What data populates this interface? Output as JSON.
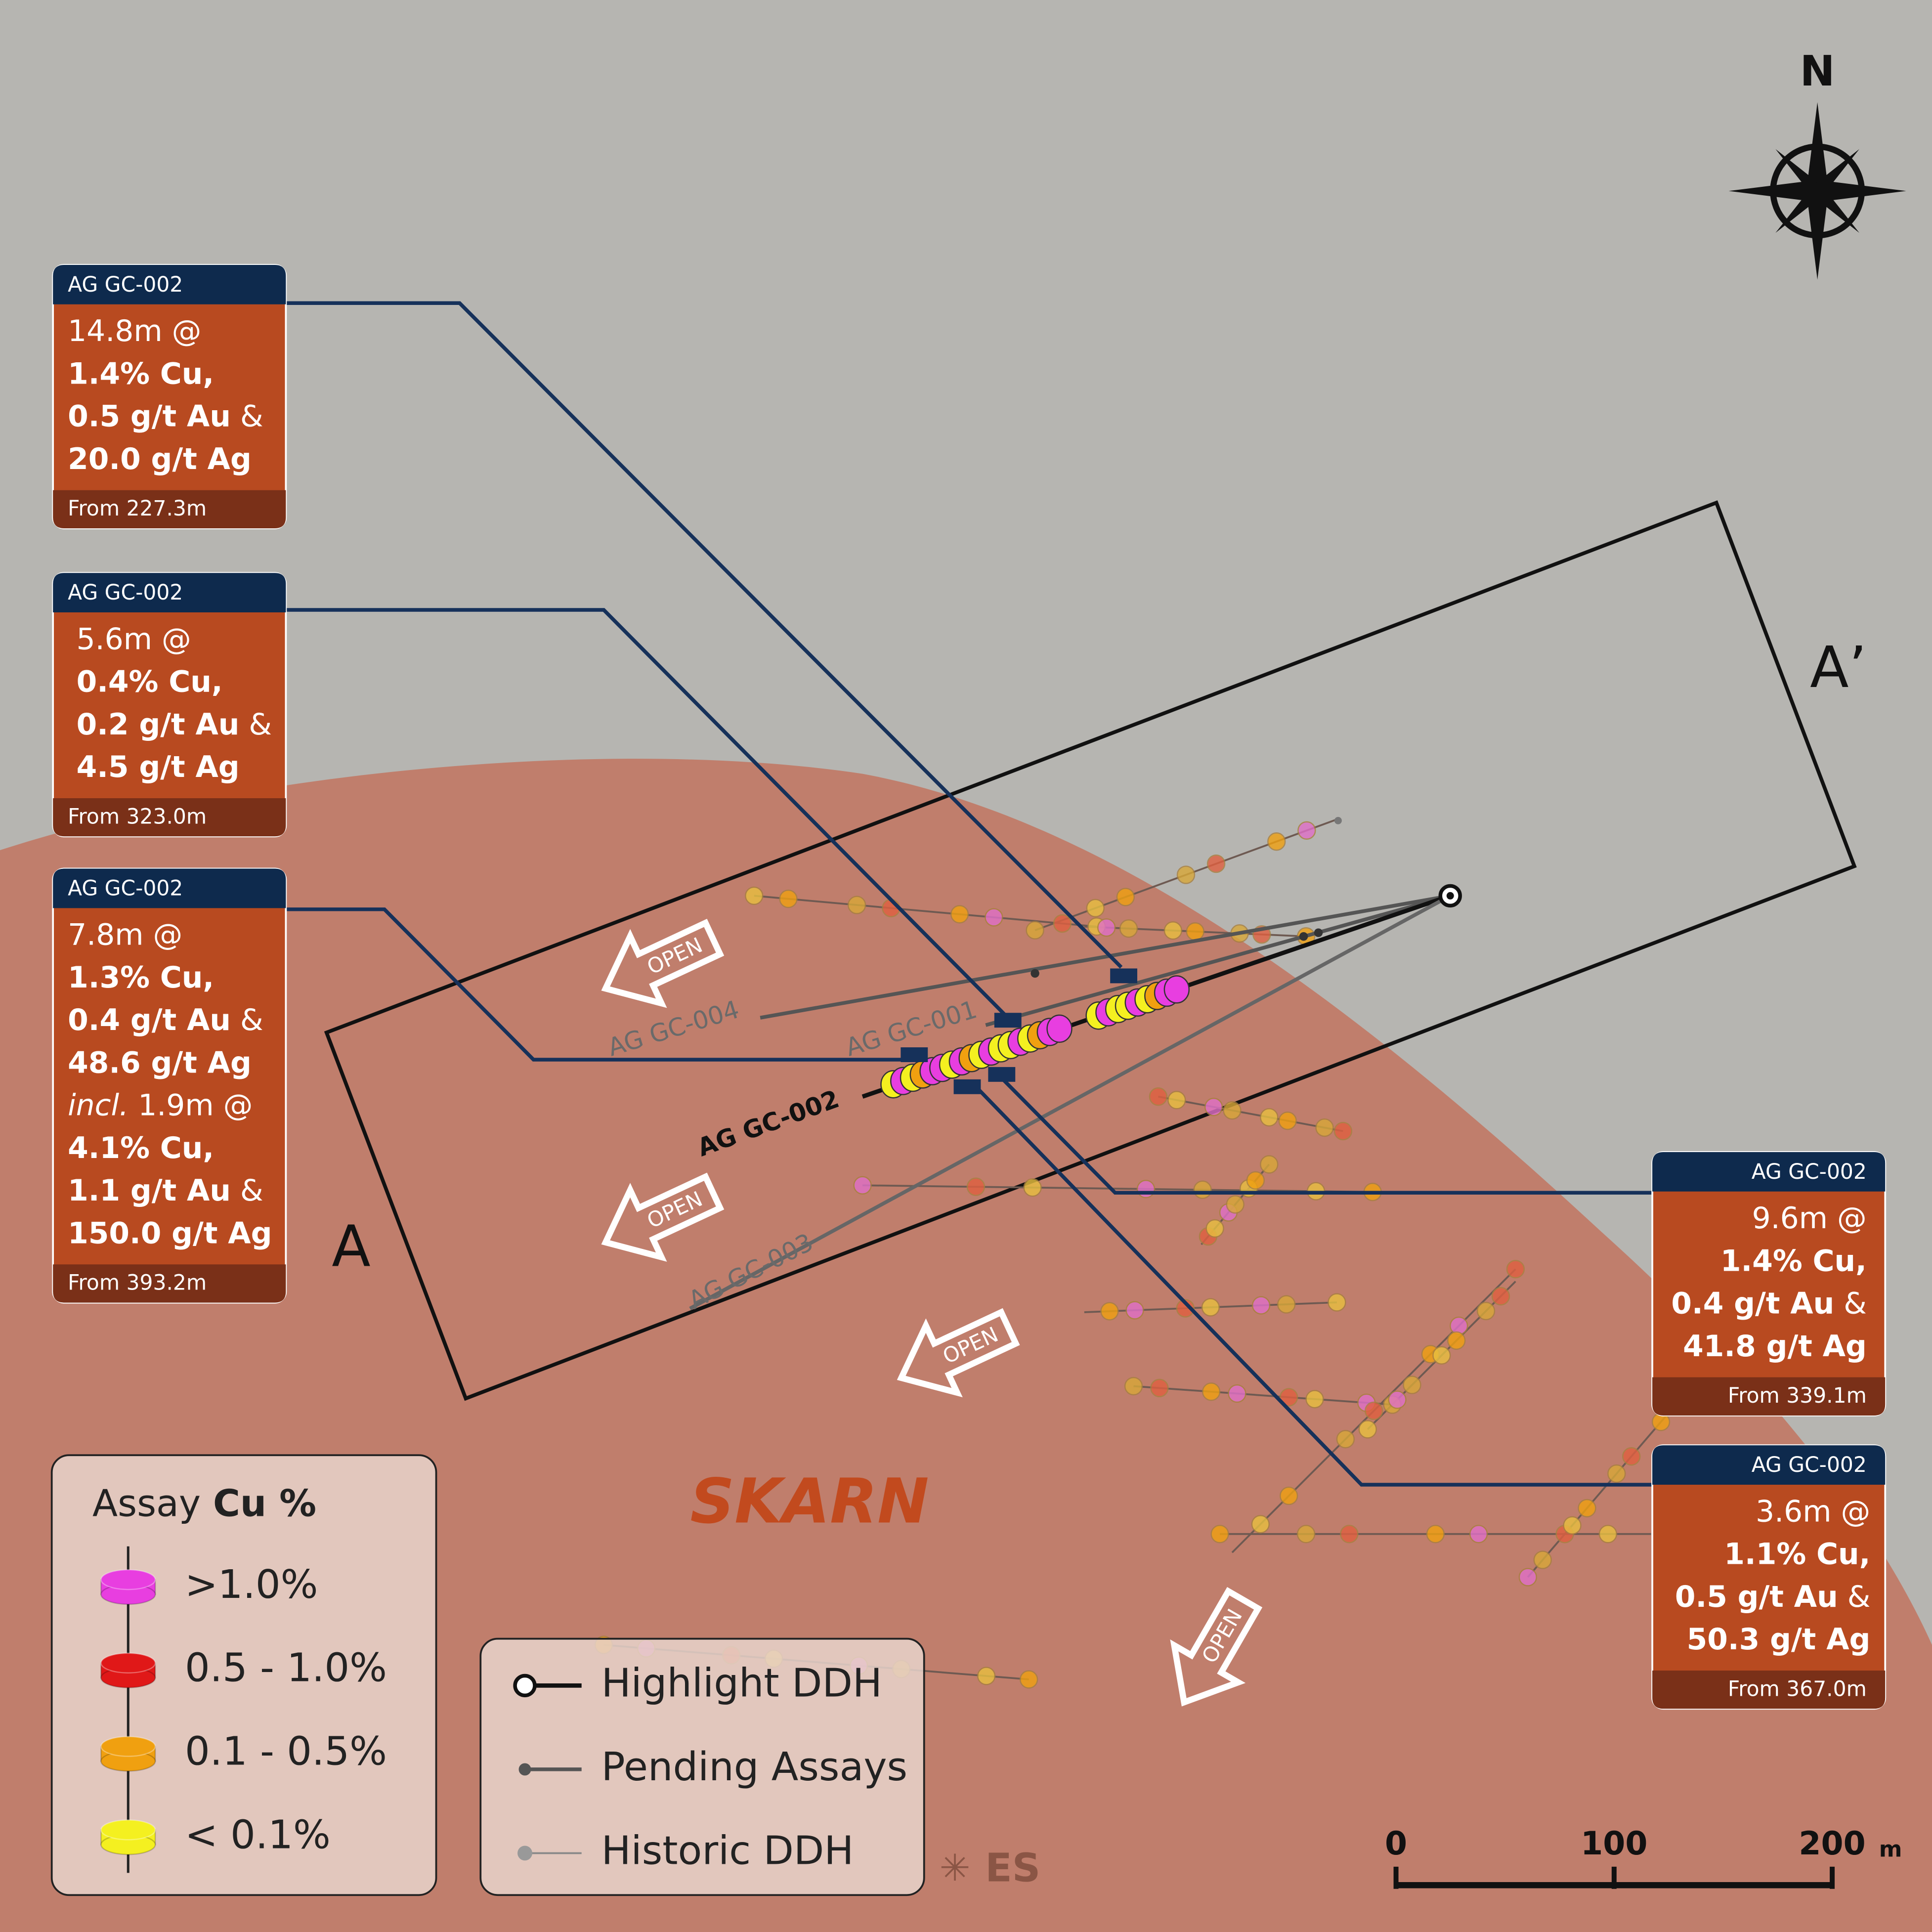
{
  "compass": "N",
  "section_labels": {
    "start": "A",
    "end": "A’"
  },
  "unit_label": "SKARN",
  "open_labels": [
    "OPEN",
    "OPEN",
    "OPEN",
    "OPEN"
  ],
  "drillholes": [
    "AG GC-004",
    "AG GC-001",
    "AG GC-002",
    "AG GC-003"
  ],
  "callouts": [
    {
      "hole": "AG GC-002",
      "lines": [
        [
          {
            "text": "14.8m @"
          }
        ],
        [
          {
            "text": "1.4% Cu,",
            "bold": true
          }
        ],
        [
          {
            "text": "0.5 g/t Au",
            "bold": true
          },
          {
            "text": " &"
          }
        ],
        [
          {
            "text": "20.0 g/t Ag",
            "bold": true
          }
        ]
      ],
      "from": "From 227.3m"
    },
    {
      "hole": "AG GC-002",
      "lines": [
        [
          {
            "text": "5.6m @"
          }
        ],
        [
          {
            "text": "0.4% Cu,",
            "bold": true
          }
        ],
        [
          {
            "text": "0.2 g/t Au",
            "bold": true
          },
          {
            "text": " &"
          }
        ],
        [
          {
            "text": "4.5 g/t Ag",
            "bold": true
          }
        ]
      ],
      "from": "From 323.0m"
    },
    {
      "hole": "AG GC-002",
      "lines": [
        [
          {
            "text": "7.8m @"
          }
        ],
        [
          {
            "text": "1.3% Cu,",
            "bold": true
          }
        ],
        [
          {
            "text": "0.4 g/t Au",
            "bold": true
          },
          {
            "text": " &"
          }
        ],
        [
          {
            "text": "48.6 g/t Ag",
            "bold": true
          }
        ],
        [
          {
            "text": "incl.",
            "italic": true
          },
          {
            "text": " 1.9m @"
          }
        ],
        [
          {
            "text": "4.1% Cu,",
            "bold": true
          }
        ],
        [
          {
            "text": "1.1 g/t Au",
            "bold": true
          },
          {
            "text": " &"
          }
        ],
        [
          {
            "text": "150.0 g/t Ag",
            "bold": true
          }
        ]
      ],
      "from": "From 393.2m"
    },
    {
      "hole": "AG GC-002",
      "lines": [
        [
          {
            "text": "9.6m @"
          }
        ],
        [
          {
            "text": "1.4% Cu,",
            "bold": true
          }
        ],
        [
          {
            "text": "0.4 g/t Au",
            "bold": true
          },
          {
            "text": " &"
          }
        ],
        [
          {
            "text": "41.8 g/t Ag",
            "bold": true
          }
        ]
      ],
      "from": "From 339.1m"
    },
    {
      "hole": "AG GC-002",
      "lines": [
        [
          {
            "text": "3.6m @"
          }
        ],
        [
          {
            "text": "1.1% Cu,",
            "bold": true
          }
        ],
        [
          {
            "text": "0.5 g/t Au",
            "bold": true
          },
          {
            "text": " &"
          }
        ],
        [
          {
            "text": "50.3 g/t Ag",
            "bold": true
          }
        ]
      ],
      "from": "From 367.0m"
    }
  ],
  "assay_legend": {
    "title": "Assay",
    "title_bold": "Cu %",
    "items": [
      {
        "label": ">1.0%",
        "color": "#e83ee0"
      },
      {
        "label": "0.5 - 1.0%",
        "color": "#e01818"
      },
      {
        "label": "0.1 - 0.5%",
        "color": "#f0a010"
      },
      {
        "label": "< 0.1%",
        "color": "#f4f020"
      }
    ]
  },
  "ddh_legend": {
    "items": [
      "Highlight DDH",
      "Pending Assays",
      "Historic DDH"
    ]
  },
  "scale_bar": {
    "labels": [
      "0",
      "100",
      "200"
    ],
    "unit": "m"
  },
  "logo": "ES"
}
